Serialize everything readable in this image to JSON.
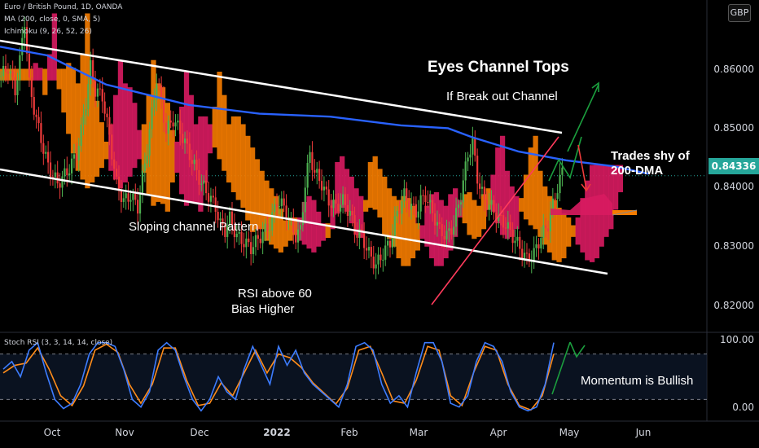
{
  "header": {
    "symbol": "Euro / British Pound, 1D, OANDA",
    "ma": "MA (200, close, 0, SMA, 5)",
    "ichimoku": "Ichimoku (9, 26, 52, 26)",
    "stoch": "Stoch RSI (3, 3, 14, 14, close)",
    "currency": "GBP"
  },
  "annotations": {
    "title": "Eyes Channel Tops",
    "breakout": "If Break out Channel",
    "trades_shy": "Trades shy of",
    "dma": "200-DMA",
    "sloping": "Sloping channel Pattern",
    "rsi": "RSI above 60",
    "bias": "Bias Higher",
    "momentum": "Momentum is Bullish"
  },
  "price_axis": {
    "labels": [
      "0.86000",
      "0.85000",
      "0.84000",
      "0.83000",
      "0.82000"
    ],
    "current": "0.84336",
    "stoch_labels": [
      "100.00",
      "0.00"
    ]
  },
  "colors": {
    "up": "#26a69a",
    "up_body": "#4caf50",
    "down": "#ef3b3b",
    "ma": "#2962ff",
    "cloud_bear": "#f57c00",
    "cloud_bull": "#d81b60",
    "channel": "#ffffff",
    "stoch_k": "#3d7cff",
    "stoch_d": "#ff8c1a",
    "trend_red": "#ff3b5c",
    "arrow_green": "#1b9e3e"
  },
  "chart_data": {
    "type": "candlestick",
    "title": "Euro / British Pound, 1D, OANDA",
    "x_labels": [
      "Oct",
      "Nov",
      "Dec",
      "2022",
      "Feb",
      "Mar",
      "Apr",
      "May",
      "Jun"
    ],
    "y_range": [
      0.8165,
      0.8735
    ],
    "y_ticks": [
      0.86,
      0.85,
      0.84,
      0.83,
      0.82
    ],
    "current_price": 0.84336,
    "ma200": [
      [
        0,
        0.8655
      ],
      [
        20,
        0.864
      ],
      [
        45,
        0.859
      ],
      [
        80,
        0.8555
      ],
      [
        110,
        0.854
      ],
      [
        140,
        0.8535
      ],
      [
        170,
        0.852
      ],
      [
        190,
        0.8515
      ],
      [
        200,
        0.85
      ],
      [
        220,
        0.8475
      ],
      [
        240,
        0.846
      ],
      [
        260,
        0.845
      ],
      [
        275,
        0.8437
      ]
    ],
    "close_series": [
      [
        0,
        0.8605
      ],
      [
        3,
        0.862
      ],
      [
        6,
        0.858
      ],
      [
        8,
        0.863
      ],
      [
        10,
        0.87
      ],
      [
        12,
        0.859
      ],
      [
        15,
        0.853
      ],
      [
        18,
        0.848
      ],
      [
        20,
        0.845
      ],
      [
        24,
        0.842
      ],
      [
        28,
        0.844
      ],
      [
        32,
        0.847
      ],
      [
        34,
        0.851
      ],
      [
        36,
        0.856
      ],
      [
        38,
        0.862
      ],
      [
        40,
        0.858
      ],
      [
        43,
        0.857
      ],
      [
        46,
        0.85
      ],
      [
        49,
        0.842
      ],
      [
        52,
        0.839
      ],
      [
        55,
        0.84
      ],
      [
        58,
        0.838
      ],
      [
        60,
        0.843
      ],
      [
        62,
        0.848
      ],
      [
        64,
        0.854
      ],
      [
        66,
        0.86
      ],
      [
        68,
        0.856
      ],
      [
        70,
        0.851
      ],
      [
        73,
        0.853
      ],
      [
        76,
        0.851
      ],
      [
        79,
        0.848
      ],
      [
        82,
        0.845
      ],
      [
        85,
        0.842
      ],
      [
        88,
        0.84
      ],
      [
        91,
        0.838
      ],
      [
        93,
        0.835
      ],
      [
        95,
        0.834
      ],
      [
        97,
        0.836
      ],
      [
        100,
        0.833
      ],
      [
        103,
        0.832
      ],
      [
        106,
        0.831
      ],
      [
        110,
        0.833
      ],
      [
        114,
        0.835
      ],
      [
        117,
        0.839
      ],
      [
        120,
        0.838
      ],
      [
        123,
        0.835
      ],
      [
        125,
        0.833
      ],
      [
        127,
        0.834
      ],
      [
        129,
        0.842
      ],
      [
        131,
        0.847
      ],
      [
        133,
        0.844
      ],
      [
        136,
        0.842
      ],
      [
        139,
        0.839
      ],
      [
        142,
        0.838
      ],
      [
        145,
        0.839
      ],
      [
        148,
        0.837
      ],
      [
        150,
        0.834
      ],
      [
        153,
        0.833
      ],
      [
        156,
        0.83
      ],
      [
        159,
        0.828
      ],
      [
        162,
        0.83
      ],
      [
        165,
        0.832
      ],
      [
        168,
        0.837
      ],
      [
        171,
        0.84
      ],
      [
        174,
        0.838
      ],
      [
        176,
        0.837
      ],
      [
        178,
        0.839
      ],
      [
        180,
        0.84
      ],
      [
        183,
        0.837
      ],
      [
        186,
        0.834
      ],
      [
        189,
        0.833
      ],
      [
        192,
        0.835
      ],
      [
        195,
        0.84
      ],
      [
        198,
        0.847
      ],
      [
        200,
        0.849
      ],
      [
        202,
        0.843
      ],
      [
        205,
        0.839
      ],
      [
        208,
        0.838
      ],
      [
        211,
        0.836
      ],
      [
        214,
        0.835
      ],
      [
        217,
        0.833
      ],
      [
        220,
        0.831
      ],
      [
        223,
        0.829
      ],
      [
        226,
        0.83
      ],
      [
        229,
        0.833
      ],
      [
        232,
        0.835
      ],
      [
        235,
        0.84
      ],
      [
        238,
        0.844
      ]
    ],
    "stoch_rsi_k": [
      [
        0,
        60
      ],
      [
        3,
        70
      ],
      [
        6,
        50
      ],
      [
        9,
        85
      ],
      [
        12,
        95
      ],
      [
        15,
        55
      ],
      [
        18,
        20
      ],
      [
        21,
        8
      ],
      [
        24,
        15
      ],
      [
        27,
        40
      ],
      [
        30,
        80
      ],
      [
        33,
        95
      ],
      [
        36,
        95
      ],
      [
        39,
        90
      ],
      [
        42,
        60
      ],
      [
        45,
        20
      ],
      [
        48,
        10
      ],
      [
        51,
        30
      ],
      [
        54,
        85
      ],
      [
        57,
        95
      ],
      [
        60,
        85
      ],
      [
        63,
        50
      ],
      [
        66,
        20
      ],
      [
        69,
        5
      ],
      [
        72,
        20
      ],
      [
        75,
        50
      ],
      [
        78,
        30
      ],
      [
        81,
        20
      ],
      [
        84,
        60
      ],
      [
        87,
        90
      ],
      [
        90,
        65
      ],
      [
        93,
        40
      ],
      [
        96,
        90
      ],
      [
        99,
        65
      ],
      [
        102,
        85
      ],
      [
        105,
        55
      ],
      [
        108,
        40
      ],
      [
        111,
        30
      ],
      [
        114,
        20
      ],
      [
        117,
        10
      ],
      [
        120,
        40
      ],
      [
        123,
        90
      ],
      [
        126,
        95
      ],
      [
        129,
        85
      ],
      [
        132,
        40
      ],
      [
        135,
        15
      ],
      [
        138,
        25
      ],
      [
        141,
        10
      ],
      [
        144,
        55
      ],
      [
        147,
        95
      ],
      [
        150,
        95
      ],
      [
        153,
        70
      ],
      [
        156,
        15
      ],
      [
        159,
        10
      ],
      [
        162,
        25
      ],
      [
        165,
        70
      ],
      [
        168,
        95
      ],
      [
        171,
        90
      ],
      [
        174,
        70
      ],
      [
        177,
        30
      ],
      [
        180,
        10
      ],
      [
        183,
        5
      ],
      [
        186,
        10
      ],
      [
        189,
        40
      ],
      [
        192,
        95
      ]
    ],
    "stoch_rsi_d": [
      [
        0,
        55
      ],
      [
        4,
        65
      ],
      [
        8,
        68
      ],
      [
        12,
        88
      ],
      [
        16,
        60
      ],
      [
        20,
        25
      ],
      [
        24,
        12
      ],
      [
        28,
        38
      ],
      [
        32,
        85
      ],
      [
        36,
        93
      ],
      [
        40,
        82
      ],
      [
        44,
        40
      ],
      [
        48,
        15
      ],
      [
        52,
        40
      ],
      [
        56,
        88
      ],
      [
        60,
        88
      ],
      [
        64,
        45
      ],
      [
        68,
        12
      ],
      [
        72,
        15
      ],
      [
        76,
        42
      ],
      [
        80,
        25
      ],
      [
        84,
        55
      ],
      [
        88,
        85
      ],
      [
        92,
        55
      ],
      [
        96,
        80
      ],
      [
        100,
        75
      ],
      [
        104,
        62
      ],
      [
        108,
        42
      ],
      [
        112,
        28
      ],
      [
        116,
        14
      ],
      [
        120,
        35
      ],
      [
        124,
        85
      ],
      [
        128,
        90
      ],
      [
        132,
        55
      ],
      [
        136,
        18
      ],
      [
        140,
        15
      ],
      [
        144,
        45
      ],
      [
        148,
        90
      ],
      [
        152,
        85
      ],
      [
        156,
        25
      ],
      [
        160,
        12
      ],
      [
        164,
        55
      ],
      [
        168,
        90
      ],
      [
        172,
        85
      ],
      [
        176,
        40
      ],
      [
        180,
        12
      ],
      [
        184,
        6
      ],
      [
        188,
        25
      ],
      [
        192,
        80
      ]
    ]
  }
}
